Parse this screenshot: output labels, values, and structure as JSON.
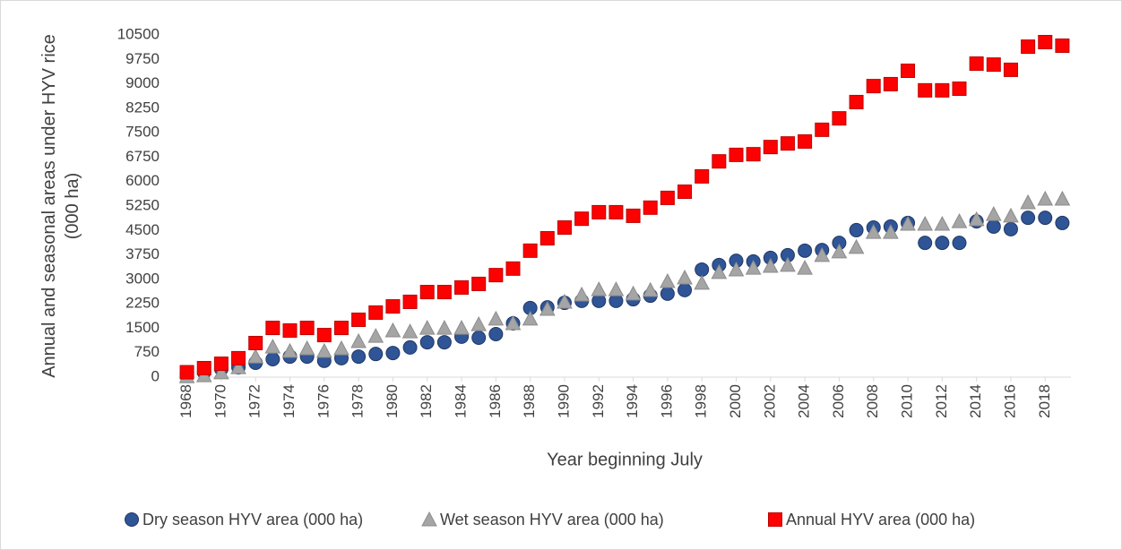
{
  "chart_data": {
    "type": "scatter",
    "x_label": "Year beginning July",
    "y_label": "Annual and seasonal areas under HYV rice (000 ha)",
    "x": [
      1968,
      1969,
      1970,
      1971,
      1972,
      1973,
      1974,
      1975,
      1976,
      1977,
      1978,
      1979,
      1980,
      1981,
      1982,
      1983,
      1984,
      1985,
      1986,
      1987,
      1988,
      1989,
      1990,
      1991,
      1992,
      1993,
      1994,
      1995,
      1996,
      1997,
      1998,
      1999,
      2000,
      2001,
      2002,
      2003,
      2004,
      2005,
      2006,
      2007,
      2008,
      2009,
      2010,
      2011,
      2012,
      2013,
      2014,
      2015,
      2016,
      2017,
      2018,
      2019
    ],
    "xlim": [
      1967.5,
      2019.5
    ],
    "xticks": [
      1968,
      1970,
      1972,
      1974,
      1976,
      1978,
      1980,
      1982,
      1984,
      1986,
      1988,
      1990,
      1992,
      1994,
      1996,
      1998,
      2000,
      2002,
      2004,
      2006,
      2008,
      2010,
      2012,
      2014,
      2016,
      2018
    ],
    "ylim": [
      0,
      10500
    ],
    "yticks": [
      0,
      750,
      1500,
      2250,
      3000,
      3750,
      4500,
      5250,
      6000,
      6750,
      7500,
      8250,
      9000,
      9750,
      10500
    ],
    "grid": false,
    "legend": "bottom",
    "series": [
      {
        "name": "Dry season HYV area (000 ha)",
        "color": "#2f5597",
        "marker": "circle",
        "values": [
          100,
          150,
          250,
          300,
          440,
          550,
          630,
          630,
          500,
          580,
          630,
          710,
          740,
          910,
          1070,
          1070,
          1240,
          1210,
          1320,
          1650,
          2120,
          2140,
          2280,
          2340,
          2340,
          2340,
          2390,
          2500,
          2560,
          2670,
          3300,
          3440,
          3570,
          3550,
          3660,
          3740,
          3880,
          3900,
          4120,
          4510,
          4590,
          4620,
          4730,
          4120,
          4120,
          4120,
          4780,
          4620,
          4540,
          4890,
          4890,
          4730
        ]
      },
      {
        "name": "Wet season HYV area (000 ha)",
        "color": "#a5a5a5",
        "marker": "triangle",
        "values": [
          20,
          50,
          140,
          300,
          630,
          930,
          800,
          880,
          800,
          880,
          1100,
          1260,
          1430,
          1400,
          1510,
          1510,
          1510,
          1620,
          1790,
          1650,
          1790,
          2090,
          2310,
          2530,
          2690,
          2690,
          2560,
          2670,
          2940,
          3050,
          2890,
          3220,
          3300,
          3350,
          3410,
          3440,
          3350,
          3740,
          3850,
          3990,
          4450,
          4450,
          4700,
          4700,
          4700,
          4780,
          4840,
          5000,
          4950,
          5360,
          5470,
          5470
        ]
      },
      {
        "name": "Annual HYV area (000 ha)",
        "color": "#ff0000",
        "marker": "square",
        "values": [
          150,
          275,
          410,
          580,
          1045,
          1510,
          1430,
          1510,
          1290,
          1510,
          1760,
          1980,
          2170,
          2310,
          2610,
          2610,
          2750,
          2860,
          3130,
          3330,
          3880,
          4260,
          4590,
          4860,
          5060,
          5060,
          4950,
          5200,
          5500,
          5690,
          6160,
          6620,
          6820,
          6840,
          7060,
          7170,
          7230,
          7590,
          7940,
          8440,
          8930,
          8990,
          9400,
          8800,
          8800,
          8850,
          9620,
          9590,
          9430,
          10140,
          10280,
          10170
        ]
      }
    ]
  }
}
